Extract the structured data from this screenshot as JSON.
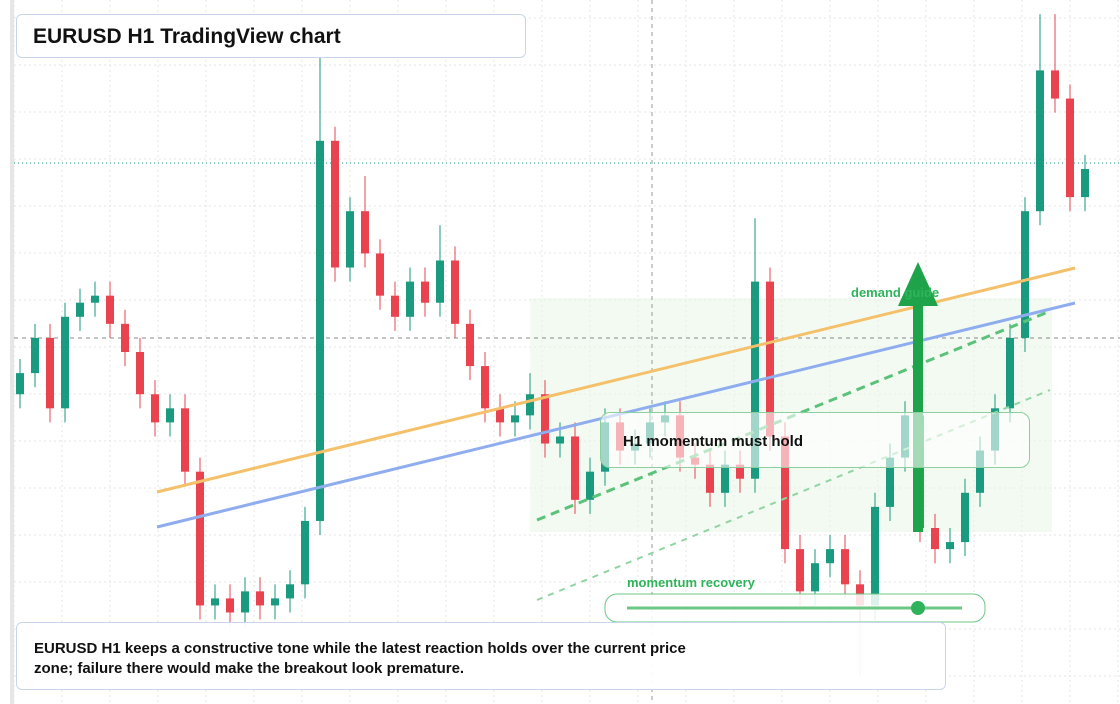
{
  "chart_data": {
    "type": "candlestick",
    "title": "EURUSD H1 TradingView chart",
    "description": "EURUSD H1 keeps a constructive tone while the latest reaction holds over the current price zone; failure there would make the breakout look premature.",
    "annotations": {
      "demand_guide": "demand guide",
      "momentum_hold": "H1 momentum must hold",
      "momentum_recovery": "momentum recovery"
    },
    "up_color": "#1a9a7e",
    "down_color": "#e8434f",
    "ylim": [
      0,
      100
    ],
    "open": [
      44,
      47,
      52,
      42,
      55,
      57,
      58,
      54,
      50,
      44,
      40,
      42,
      33,
      14,
      15,
      13,
      16,
      14,
      15,
      17,
      26,
      80,
      62,
      70,
      64,
      58,
      55,
      60,
      57,
      63,
      54,
      48,
      42,
      40,
      41,
      44,
      37,
      38,
      29,
      33,
      40,
      36,
      37,
      40,
      41,
      35,
      34,
      30,
      34,
      32,
      60,
      38,
      22,
      16,
      20,
      22,
      17,
      14,
      28,
      35,
      41,
      25,
      22,
      23,
      30,
      36,
      42,
      52,
      70,
      90,
      86,
      72
    ],
    "high": [
      49,
      54,
      54,
      57,
      59,
      60,
      60,
      56,
      52,
      46,
      44,
      44,
      35,
      17,
      17,
      18,
      18,
      17,
      19,
      28,
      92,
      82,
      72,
      75,
      66,
      60,
      62,
      62,
      68,
      65,
      56,
      50,
      44,
      43,
      47,
      46,
      40,
      40,
      35,
      42,
      42,
      39,
      42,
      43,
      43,
      37,
      36,
      36,
      36,
      69,
      62,
      40,
      24,
      22,
      24,
      24,
      19,
      30,
      37,
      43,
      43,
      27,
      25,
      32,
      38,
      44,
      54,
      72,
      98,
      98,
      88,
      78
    ],
    "low": [
      42,
      45,
      40,
      40,
      53,
      55,
      52,
      48,
      42,
      38,
      38,
      31,
      12,
      12,
      11,
      11,
      12,
      12,
      13,
      15,
      24,
      60,
      60,
      62,
      56,
      53,
      53,
      55,
      55,
      52,
      46,
      40,
      38,
      38,
      39,
      35,
      35,
      27,
      27,
      31,
      34,
      34,
      35,
      38,
      33,
      32,
      28,
      28,
      30,
      30,
      36,
      20,
      14,
      14,
      18,
      15,
      4,
      12,
      26,
      33,
      23,
      20,
      20,
      21,
      28,
      34,
      40,
      50,
      68,
      84,
      70,
      70
    ],
    "close": [
      47,
      52,
      42,
      55,
      57,
      58,
      54,
      50,
      44,
      40,
      42,
      33,
      14,
      15,
      13,
      16,
      14,
      15,
      17,
      26,
      80,
      62,
      70,
      64,
      58,
      55,
      60,
      57,
      63,
      54,
      48,
      42,
      40,
      41,
      44,
      37,
      38,
      29,
      33,
      40,
      36,
      37,
      40,
      41,
      35,
      34,
      30,
      34,
      32,
      60,
      38,
      22,
      16,
      20,
      22,
      17,
      14,
      28,
      35,
      41,
      25,
      22,
      23,
      30,
      36,
      42,
      52,
      70,
      90,
      86,
      72,
      76
    ]
  }
}
